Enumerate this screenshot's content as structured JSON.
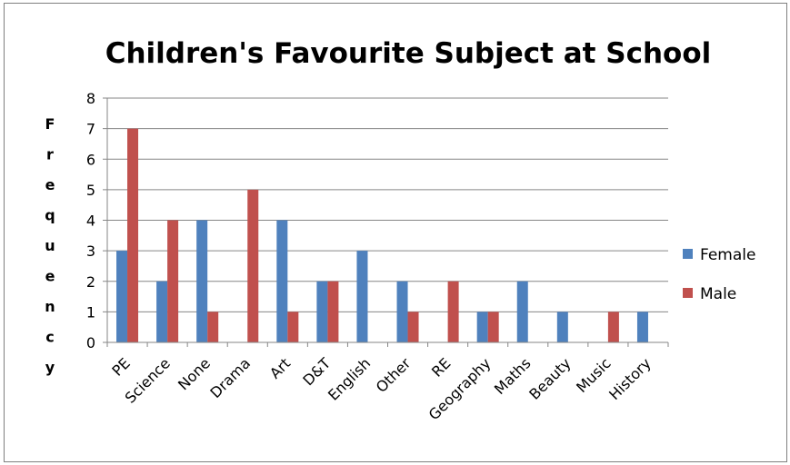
{
  "chart_data": {
    "type": "bar",
    "title": "Children's Favourite Subject at School",
    "xlabel": "",
    "ylabel": "Frequency",
    "ylim": [
      0,
      8
    ],
    "yticks": [
      0,
      1,
      2,
      3,
      4,
      5,
      6,
      7,
      8
    ],
    "grid": true,
    "legend_position": "right",
    "categories": [
      "PE",
      "Science",
      "None",
      "Drama",
      "Art",
      "D&T",
      "English",
      "Other",
      "RE",
      "Geography",
      "Maths",
      "Beauty",
      "Music",
      "History"
    ],
    "series": [
      {
        "name": "Female",
        "color": "#4f81bd",
        "values": [
          3,
          2,
          4,
          0,
          4,
          2,
          3,
          2,
          0,
          1,
          2,
          1,
          0,
          1
        ]
      },
      {
        "name": "Male",
        "color": "#c0504d",
        "values": [
          7,
          4,
          1,
          5,
          1,
          2,
          0,
          1,
          2,
          1,
          0,
          0,
          1,
          0
        ]
      }
    ]
  }
}
